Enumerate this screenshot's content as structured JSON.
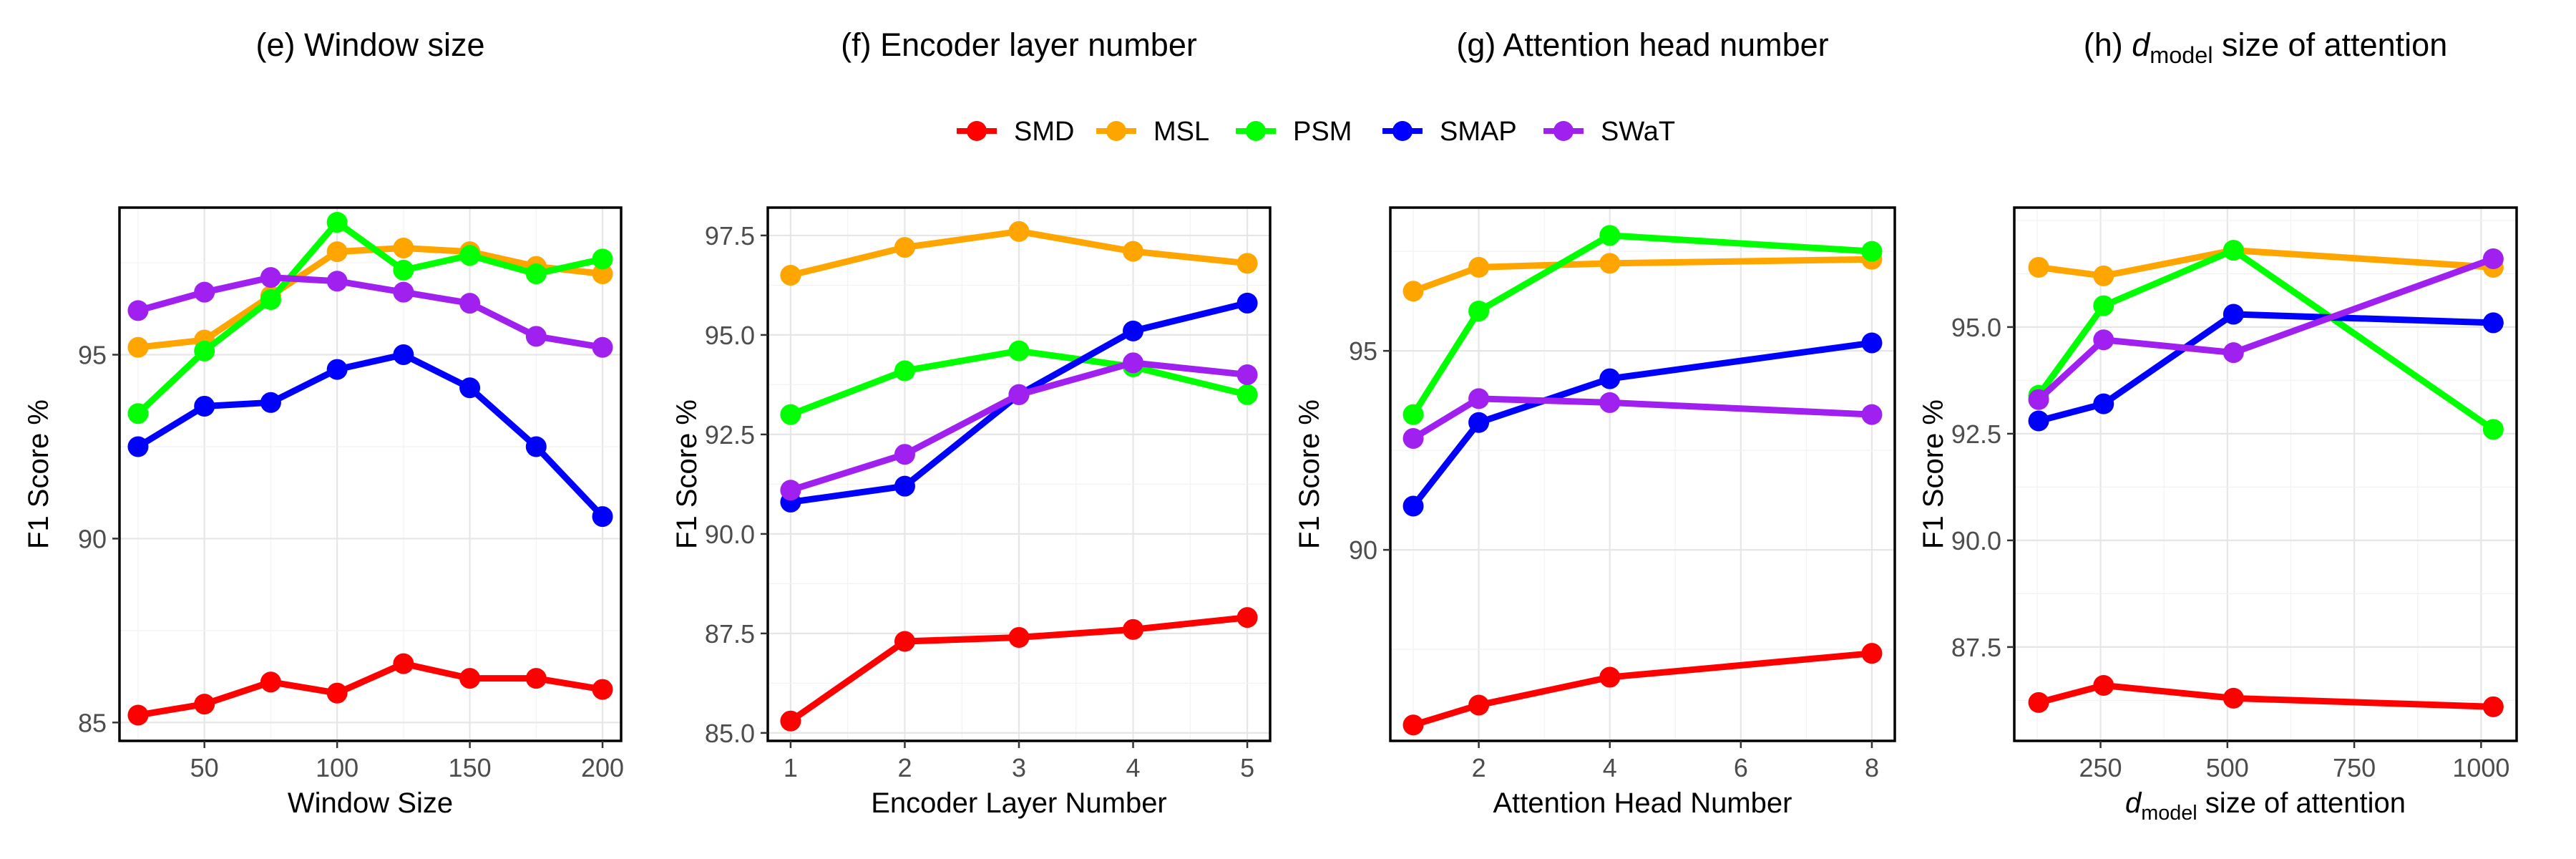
{
  "chart_data": {
    "legend": {
      "placement": "top-center",
      "entries": [
        {
          "name": "SMD",
          "color": "#ff0000"
        },
        {
          "name": "MSL",
          "color": "#ffa500"
        },
        {
          "name": "PSM",
          "color": "#00ff00"
        },
        {
          "name": "SMAP",
          "color": "#0000ff"
        },
        {
          "name": "SWaT",
          "color": "#a020f0"
        }
      ]
    },
    "panels": [
      {
        "type": "line",
        "title": "(e) Window size",
        "xlabel": "Window Size",
        "ylabel": "F1 Score %",
        "xlim": [
          18,
          207
        ],
        "ylim": [
          84.5,
          99.0
        ],
        "xticks": [
          50,
          100,
          150,
          200
        ],
        "yticks": [
          85,
          90,
          95
        ],
        "x": [
          25,
          50,
          75,
          100,
          125,
          150,
          175,
          200
        ],
        "series": [
          {
            "name": "SMD",
            "values": [
              85.2,
              85.5,
              86.1,
              85.8,
              86.6,
              86.2,
              86.2,
              85.9
            ]
          },
          {
            "name": "MSL",
            "values": [
              95.2,
              95.4,
              96.6,
              97.8,
              97.9,
              97.8,
              97.4,
              97.2
            ]
          },
          {
            "name": "PSM",
            "values": [
              93.4,
              95.1,
              96.5,
              98.6,
              97.3,
              97.7,
              97.2,
              97.6
            ]
          },
          {
            "name": "SMAP",
            "values": [
              92.5,
              93.6,
              93.7,
              94.6,
              95.0,
              94.1,
              92.5,
              90.6
            ]
          },
          {
            "name": "SWaT",
            "values": [
              96.2,
              96.7,
              97.1,
              97.0,
              96.7,
              96.4,
              95.5,
              95.2
            ]
          }
        ]
      },
      {
        "type": "line",
        "title": "(f) Encoder layer number",
        "xlabel": "Encoder Layer Number",
        "ylabel": "F1 Score %",
        "xlim": [
          0.8,
          5.2
        ],
        "ylim": [
          84.8,
          98.2
        ],
        "xticks": [
          1,
          2,
          3,
          4,
          5
        ],
        "yticks": [
          85.0,
          87.5,
          90.0,
          92.5,
          95.0,
          97.5
        ],
        "tick_decimals": 1,
        "x": [
          1,
          2,
          3,
          4,
          5
        ],
        "series": [
          {
            "name": "SMD",
            "values": [
              85.3,
              87.3,
              87.4,
              87.6,
              87.9
            ]
          },
          {
            "name": "MSL",
            "values": [
              96.5,
              97.2,
              97.6,
              97.1,
              96.8
            ]
          },
          {
            "name": "PSM",
            "values": [
              93.0,
              94.1,
              94.6,
              94.2,
              93.5
            ]
          },
          {
            "name": "SMAP",
            "values": [
              90.8,
              91.2,
              93.5,
              95.1,
              95.8
            ]
          },
          {
            "name": "SWaT",
            "values": [
              91.1,
              92.0,
              93.5,
              94.3,
              94.0
            ]
          }
        ]
      },
      {
        "type": "line",
        "title": "(g) Attention head number",
        "xlabel": "Attention Head Number",
        "ylabel": "F1 Score %",
        "xlim": [
          0.65,
          8.35
        ],
        "ylim": [
          85.2,
          98.6
        ],
        "xticks": [
          2,
          4,
          6,
          8
        ],
        "yticks": [
          90,
          95
        ],
        "x": [
          1,
          2,
          4,
          8
        ],
        "series": [
          {
            "name": "SMD",
            "values": [
              85.6,
              86.1,
              86.8,
              87.4
            ]
          },
          {
            "name": "MSL",
            "values": [
              96.5,
              97.1,
              97.2,
              97.3
            ]
          },
          {
            "name": "PSM",
            "values": [
              93.4,
              96.0,
              97.9,
              97.5
            ]
          },
          {
            "name": "SMAP",
            "values": [
              91.1,
              93.2,
              94.3,
              95.2
            ]
          },
          {
            "name": "SWaT",
            "values": [
              92.8,
              93.8,
              93.7,
              93.4
            ]
          }
        ]
      },
      {
        "type": "line",
        "title": "(h) d_model size of attention",
        "title_parts": {
          "prefix": "(h) ",
          "var": "d",
          "sub": "model",
          "suffix": " size of attention"
        },
        "xlabel": "d_model size of attention",
        "xlabel_parts": {
          "prefix": "",
          "var": "d",
          "sub": "model",
          "suffix": " size of attention"
        },
        "ylabel": "F1 Score %",
        "xlim": [
          80,
          1070
        ],
        "ylim": [
          85.3,
          97.8
        ],
        "xticks": [
          250,
          500,
          750,
          1000
        ],
        "yticks": [
          87.5,
          90.0,
          92.5,
          95.0
        ],
        "tick_decimals": 1,
        "x": [
          128,
          256,
          512,
          1024
        ],
        "series": [
          {
            "name": "SMD",
            "values": [
              86.2,
              86.6,
              86.3,
              86.1
            ]
          },
          {
            "name": "MSL",
            "values": [
              96.4,
              96.2,
              96.8,
              96.4
            ]
          },
          {
            "name": "PSM",
            "values": [
              93.4,
              95.5,
              96.8,
              92.6
            ]
          },
          {
            "name": "SMAP",
            "values": [
              92.8,
              93.2,
              95.3,
              95.1
            ]
          },
          {
            "name": "SWaT",
            "values": [
              93.3,
              94.7,
              94.4,
              96.6
            ]
          }
        ]
      }
    ]
  }
}
